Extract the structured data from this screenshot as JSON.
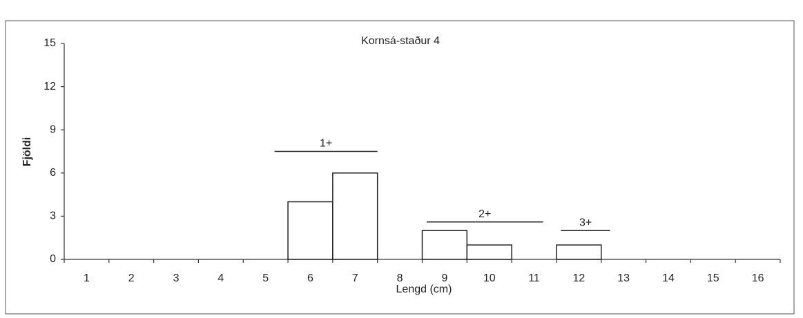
{
  "chart_data": {
    "type": "bar",
    "title": "Kornsá-staður 4",
    "x_label": "Lengd (cm)",
    "y_label": "Fjöldi",
    "categories": [
      1,
      2,
      3,
      4,
      5,
      6,
      7,
      8,
      9,
      10,
      11,
      12,
      13,
      14,
      15,
      16
    ],
    "values": [
      0,
      0,
      0,
      0,
      0,
      4,
      6,
      0,
      2,
      1,
      0,
      1,
      0,
      0,
      0,
      0
    ],
    "color": "#ffffff",
    "ylim": [
      0,
      15
    ],
    "yticks": [
      0,
      3,
      6,
      9,
      12,
      15
    ],
    "grid": false,
    "annotations": [
      {
        "text": "1+"
      },
      {
        "text": "2+"
      },
      {
        "text": "3+"
      }
    ]
  }
}
